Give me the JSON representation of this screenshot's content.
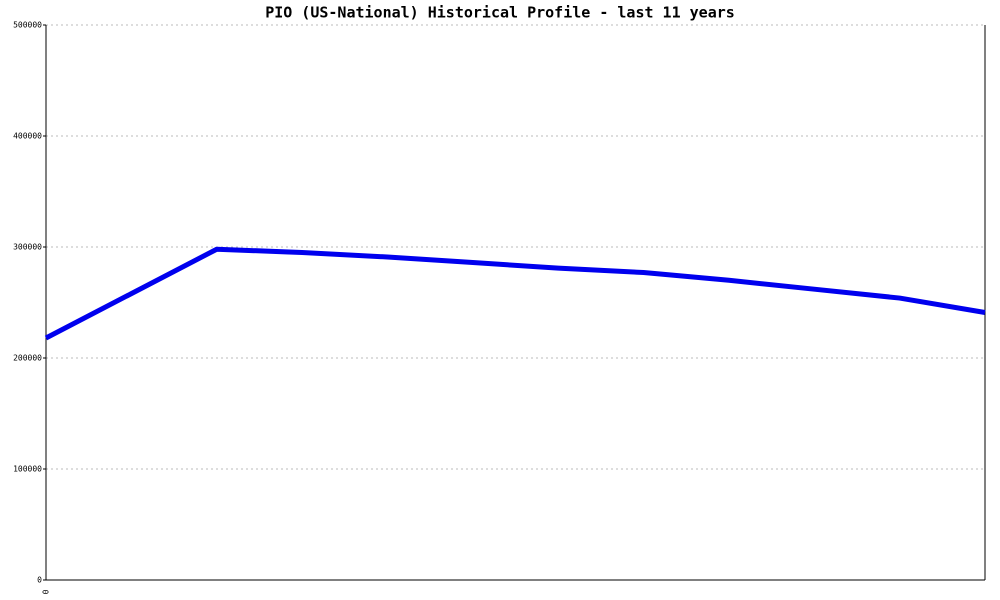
{
  "chart_data": {
    "type": "line",
    "title": "PIO (US-National) Historical Profile - last 11 years",
    "categories": [
      "0",
      null,
      null,
      null,
      null,
      null,
      null,
      null,
      null,
      null,
      null,
      null
    ],
    "series": [
      {
        "color": "#0000ee",
        "values": [
          218000,
          258000,
          298000,
          295000,
          291000,
          286000,
          281000,
          277000,
          270000,
          262000,
          254000,
          241000
        ]
      }
    ],
    "ylim": [
      0,
      500000
    ],
    "yticks": [
      0,
      100000,
      200000,
      300000,
      400000,
      500000
    ],
    "grid": true
  }
}
